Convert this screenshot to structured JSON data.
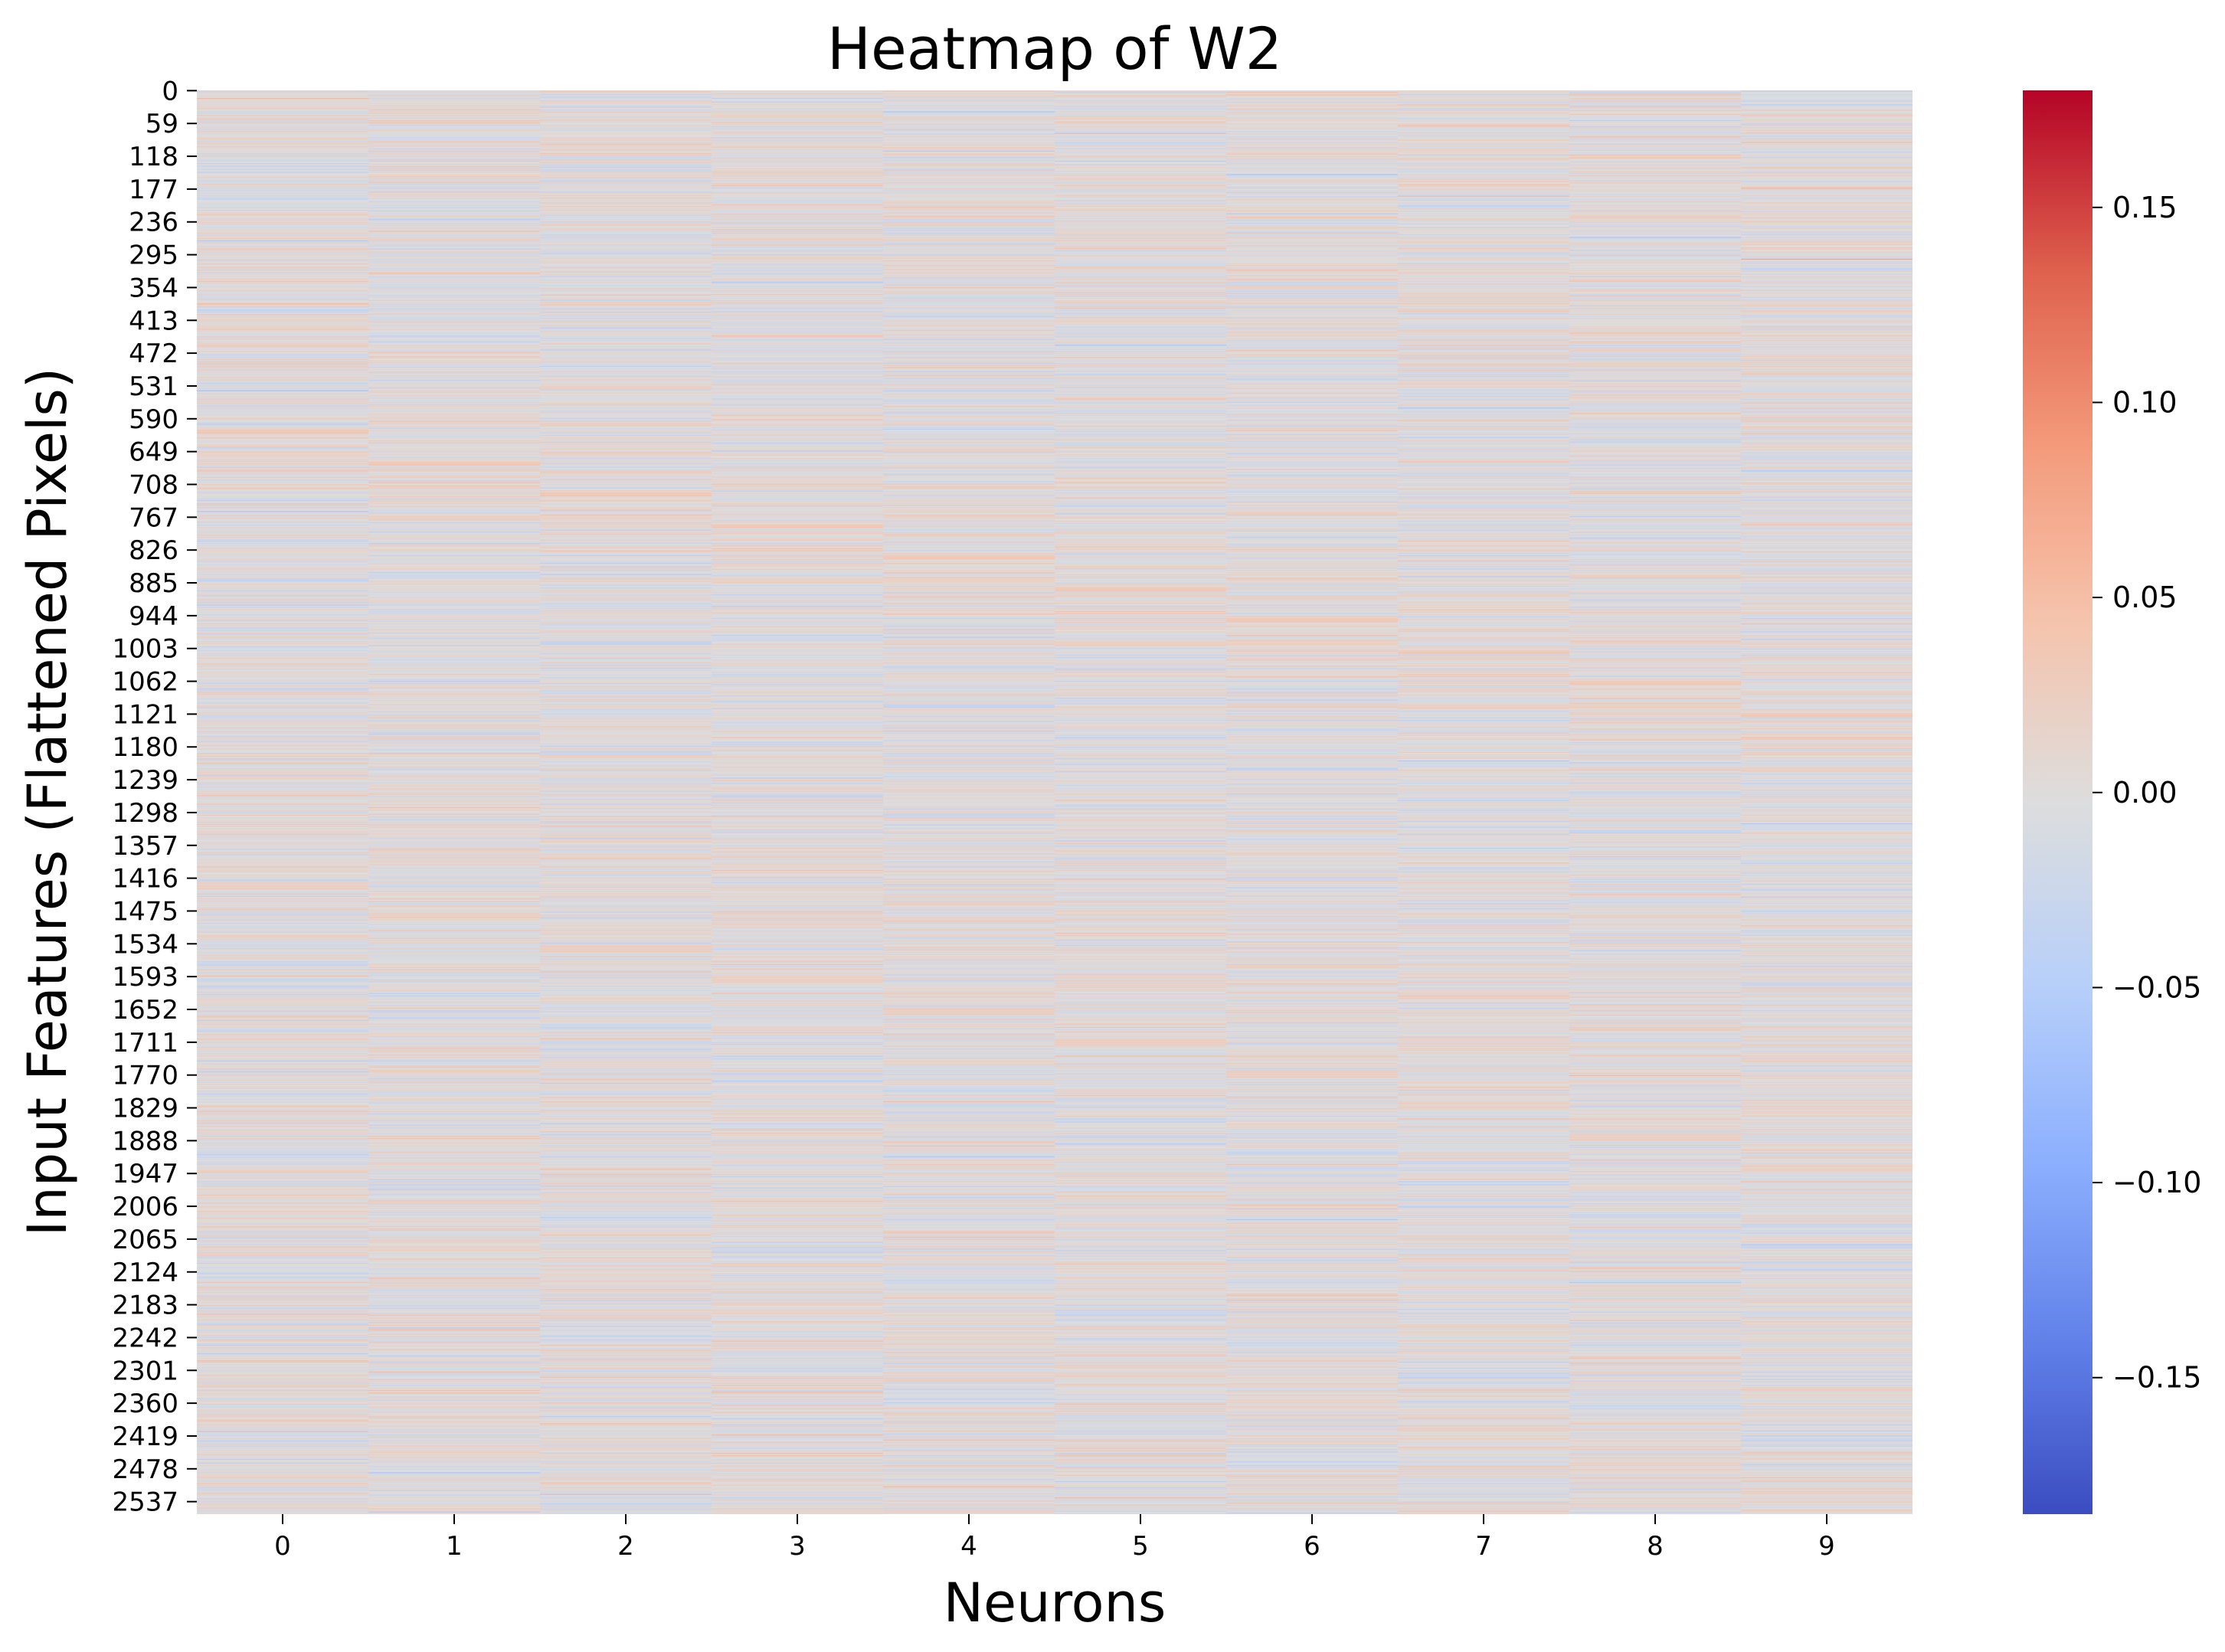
{
  "chart_data": {
    "type": "heatmap",
    "title": "Heatmap of W2",
    "xlabel": "Neurons",
    "ylabel": "Input Features (Flattened Pixels)",
    "n_rows": 2560,
    "n_cols": 10,
    "x_tick_labels": [
      "0",
      "1",
      "2",
      "3",
      "4",
      "5",
      "6",
      "7",
      "8",
      "9"
    ],
    "y_tick_labels": [
      "0",
      "59",
      "118",
      "177",
      "236",
      "295",
      "354",
      "413",
      "472",
      "531",
      "590",
      "649",
      "708",
      "767",
      "826",
      "885",
      "944",
      "1003",
      "1062",
      "1121",
      "1180",
      "1239",
      "1298",
      "1357",
      "1416",
      "1475",
      "1534",
      "1593",
      "1652",
      "1711",
      "1770",
      "1829",
      "1888",
      "1947",
      "2006",
      "2065",
      "2124",
      "2183",
      "2242",
      "2301",
      "2360",
      "2419",
      "2478",
      "2537"
    ],
    "colorbar": {
      "colormap": "coolwarm",
      "vmin": -0.185,
      "vmax": 0.18,
      "ticks": [
        -0.15,
        -0.1,
        -0.05,
        0.0,
        0.05,
        0.1,
        0.15
      ],
      "tick_labels": [
        "−0.15",
        "−0.10",
        "−0.05",
        "0.00",
        "0.05",
        "0.10",
        "0.15"
      ]
    },
    "value_distribution": {
      "approx_mean": 0.0,
      "approx_std": 0.03,
      "note": "values shown as thin horizontal stripes per column; individual cell values not legible"
    },
    "colors": {
      "low": "#3b4cc0",
      "mid": "#dddddd",
      "high": "#b40426"
    }
  }
}
